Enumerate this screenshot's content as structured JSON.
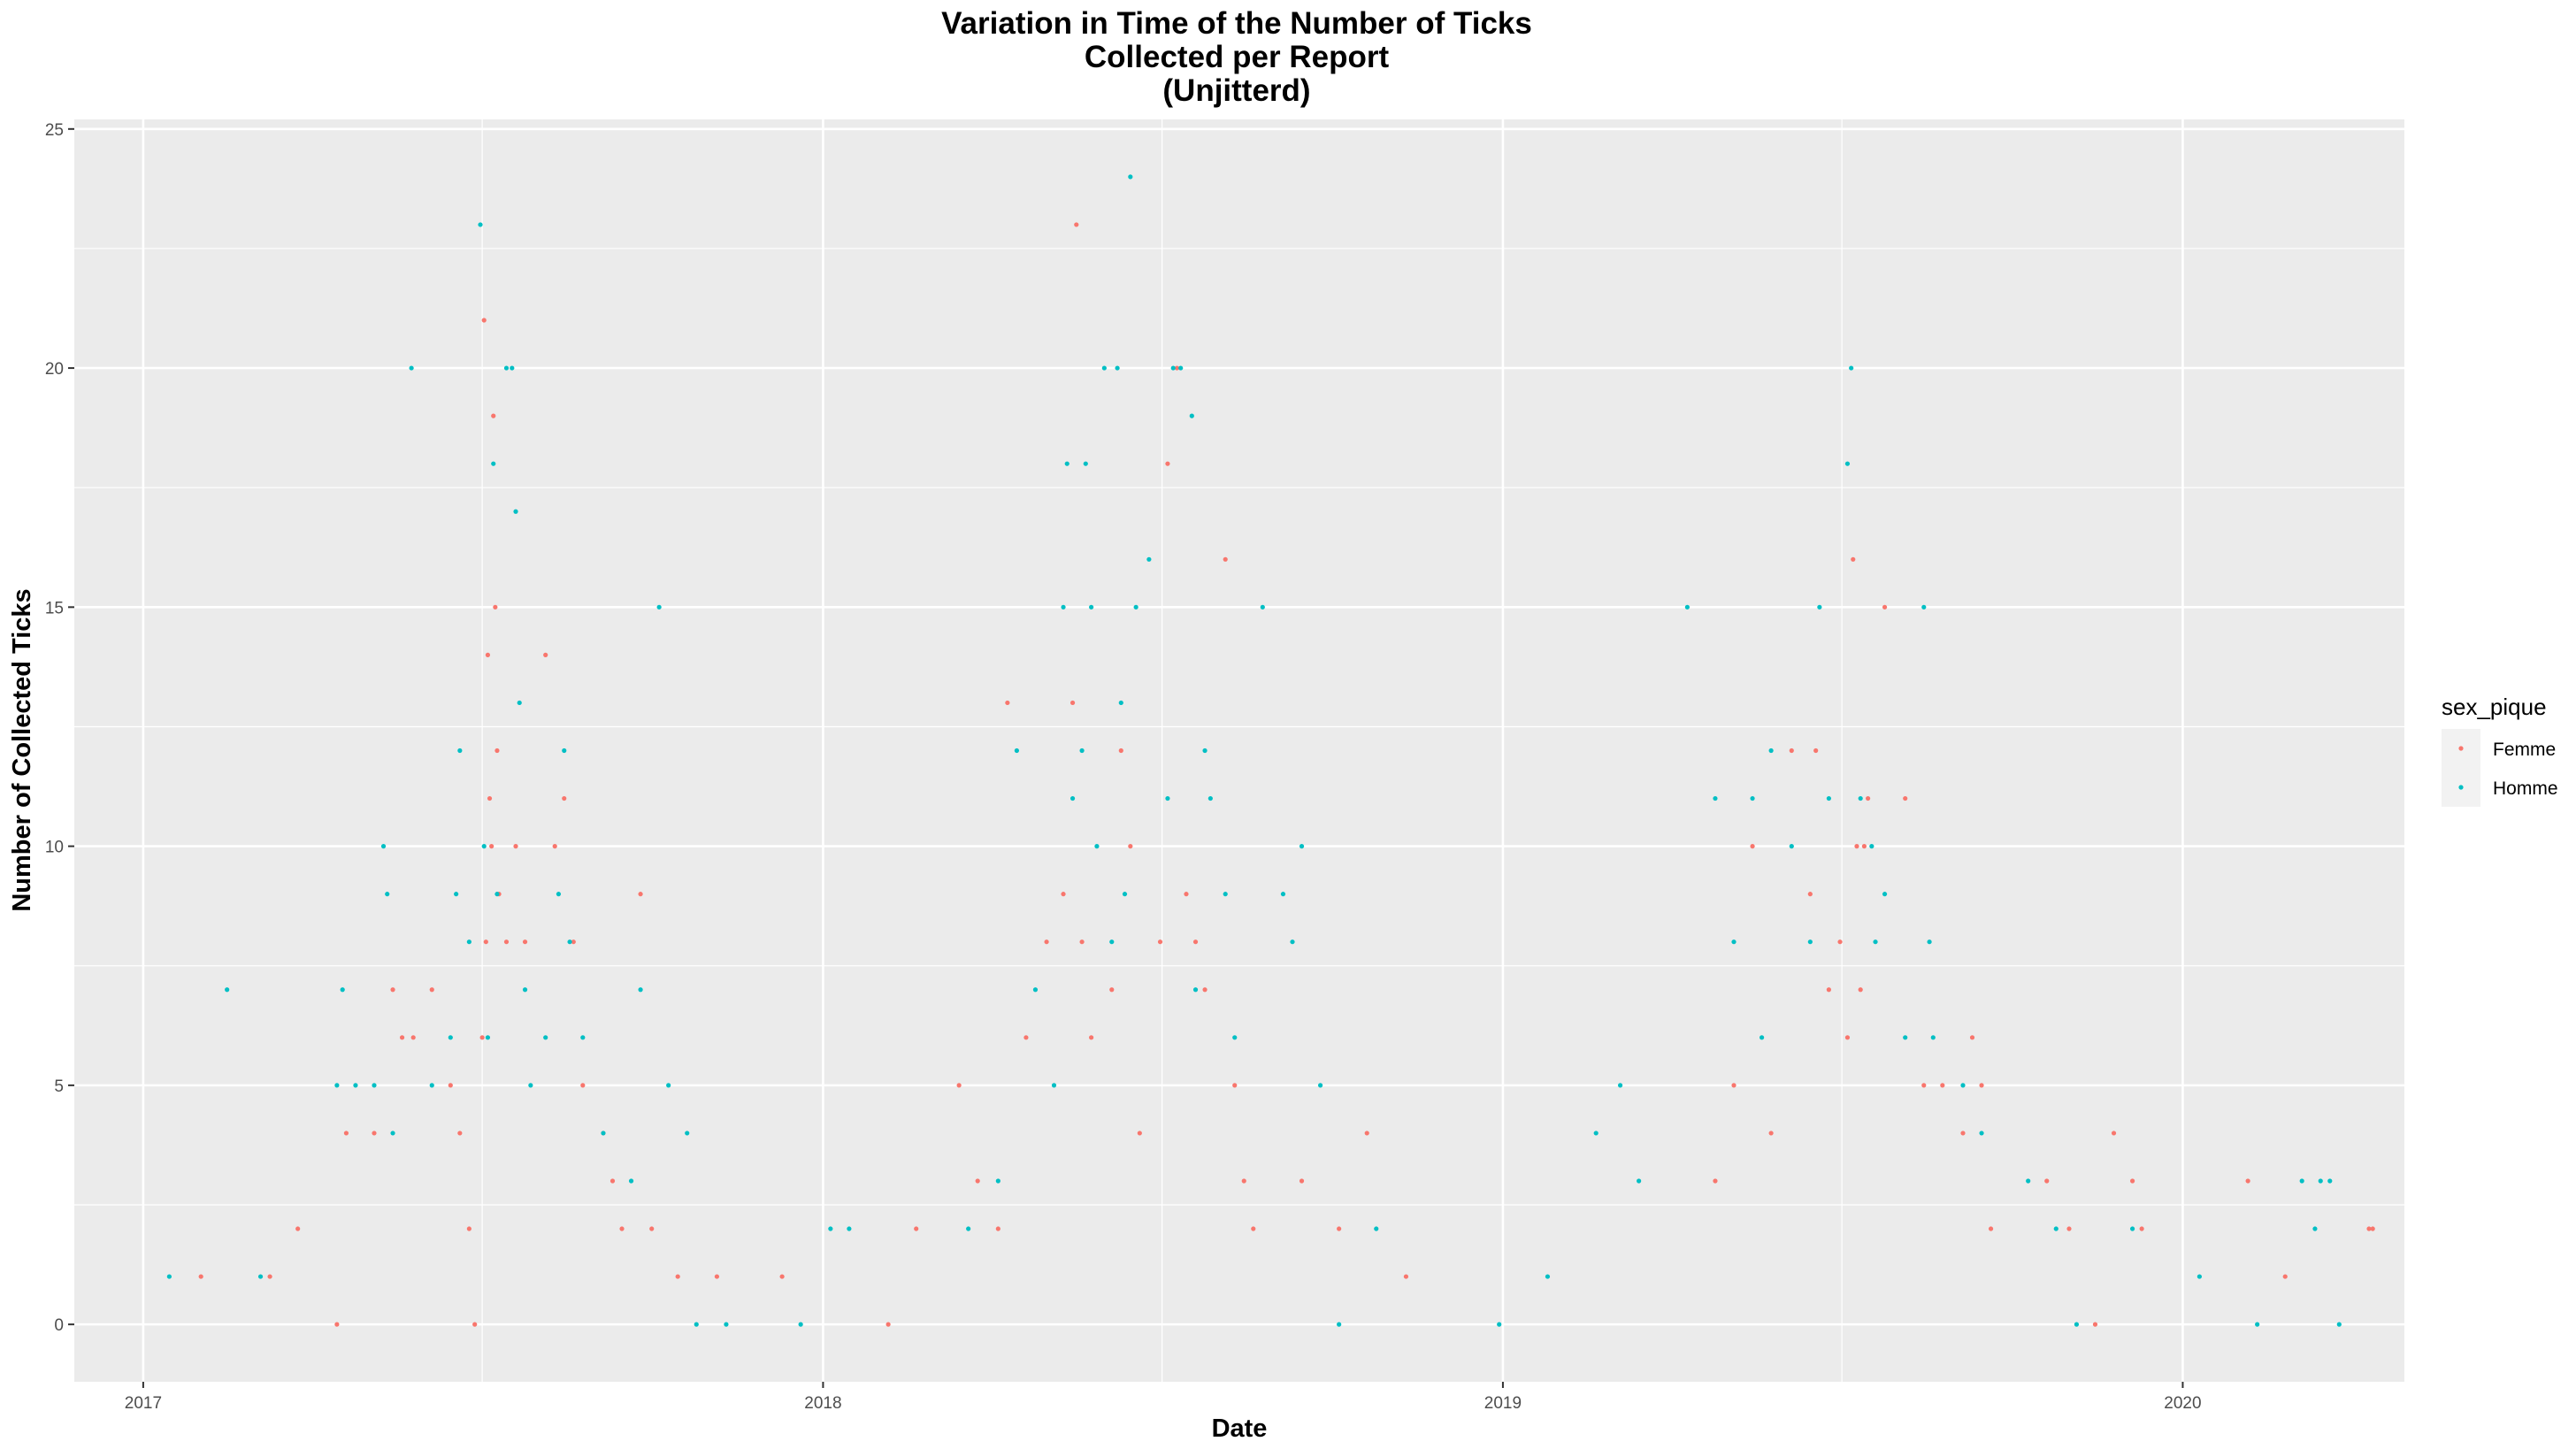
{
  "chart_data": {
    "type": "scatter",
    "title_lines": [
      "Variation in Time of the Number of Ticks",
      "Collected per Report",
      "(Unjitterd)"
    ],
    "xlabel": "Date",
    "ylabel": "Number of Collected Ticks",
    "x_ticks": [
      "2017",
      "2018",
      "2019",
      "2020"
    ],
    "y_ticks": [
      "0",
      "5",
      "10",
      "15",
      "20",
      "25"
    ],
    "xlim": [
      "2016-11-25",
      "2020-04-29"
    ],
    "ylim": [
      -1.2,
      25.2
    ],
    "grid": true,
    "legend_title": "sex_pique",
    "legend_position": "right",
    "colors": {
      "Femme": "#F8766D",
      "Homme": "#00BFC4",
      "panel": "#EBEBEB",
      "grid": "#FFFFFF"
    },
    "series": [
      {
        "name": "Femme",
        "points": [
          [
            "2017-02-01",
            1
          ],
          [
            "2017-03-10",
            1
          ],
          [
            "2017-03-25",
            2
          ],
          [
            "2017-04-15",
            0
          ],
          [
            "2017-04-20",
            4
          ],
          [
            "2017-05-05",
            4
          ],
          [
            "2017-05-15",
            7
          ],
          [
            "2017-05-20",
            6
          ],
          [
            "2017-05-26",
            6
          ],
          [
            "2017-06-05",
            7
          ],
          [
            "2017-06-15",
            5
          ],
          [
            "2017-06-20",
            4
          ],
          [
            "2017-06-25",
            2
          ],
          [
            "2017-06-28",
            0
          ],
          [
            "2017-07-03",
            21
          ],
          [
            "2017-07-05",
            14
          ],
          [
            "2017-07-08",
            19
          ],
          [
            "2017-07-09",
            15
          ],
          [
            "2017-07-10",
            12
          ],
          [
            "2017-07-06",
            11
          ],
          [
            "2017-07-07",
            10
          ],
          [
            "2017-07-04",
            8
          ],
          [
            "2017-07-02",
            6
          ],
          [
            "2017-07-11",
            9
          ],
          [
            "2017-07-15",
            8
          ],
          [
            "2017-07-20",
            10
          ],
          [
            "2017-07-25",
            8
          ],
          [
            "2017-08-05",
            14
          ],
          [
            "2017-08-15",
            11
          ],
          [
            "2017-08-10",
            10
          ],
          [
            "2017-08-20",
            8
          ],
          [
            "2017-08-25",
            5
          ],
          [
            "2017-09-05",
            4
          ],
          [
            "2017-09-10",
            3
          ],
          [
            "2017-09-15",
            2
          ],
          [
            "2017-09-25",
            9
          ],
          [
            "2017-10-01",
            2
          ],
          [
            "2017-10-15",
            1
          ],
          [
            "2017-11-05",
            1
          ],
          [
            "2017-12-10",
            1
          ],
          [
            "2018-02-05",
            0
          ],
          [
            "2018-02-20",
            2
          ],
          [
            "2018-03-15",
            5
          ],
          [
            "2018-03-25",
            3
          ],
          [
            "2018-04-05",
            2
          ],
          [
            "2018-04-10",
            13
          ],
          [
            "2018-04-20",
            6
          ],
          [
            "2018-05-01",
            8
          ],
          [
            "2018-05-10",
            9
          ],
          [
            "2018-05-15",
            13
          ],
          [
            "2018-05-17",
            23
          ],
          [
            "2018-05-20",
            8
          ],
          [
            "2018-05-25",
            6
          ],
          [
            "2018-06-05",
            7
          ],
          [
            "2018-06-10",
            12
          ],
          [
            "2018-06-15",
            10
          ],
          [
            "2018-06-20",
            4
          ],
          [
            "2018-07-01",
            8
          ],
          [
            "2018-07-05",
            18
          ],
          [
            "2018-07-10",
            20
          ],
          [
            "2018-07-15",
            9
          ],
          [
            "2018-07-20",
            8
          ],
          [
            "2018-07-25",
            7
          ],
          [
            "2018-08-05",
            16
          ],
          [
            "2018-08-10",
            5
          ],
          [
            "2018-08-15",
            3
          ],
          [
            "2018-08-20",
            2
          ],
          [
            "2018-09-15",
            3
          ],
          [
            "2018-10-20",
            4
          ],
          [
            "2018-10-05",
            2
          ],
          [
            "2018-11-10",
            1
          ],
          [
            "2019-04-25",
            3
          ],
          [
            "2019-05-05",
            5
          ],
          [
            "2019-05-15",
            10
          ],
          [
            "2019-05-25",
            4
          ],
          [
            "2019-06-05",
            12
          ],
          [
            "2019-06-15",
            9
          ],
          [
            "2019-06-18",
            12
          ],
          [
            "2019-06-25",
            7
          ],
          [
            "2019-07-01",
            8
          ],
          [
            "2019-07-05",
            6
          ],
          [
            "2019-07-08",
            16
          ],
          [
            "2019-07-10",
            10
          ],
          [
            "2019-07-12",
            7
          ],
          [
            "2019-07-14",
            10
          ],
          [
            "2019-07-16",
            11
          ],
          [
            "2019-07-25",
            15
          ],
          [
            "2019-08-05",
            11
          ],
          [
            "2019-08-15",
            5
          ],
          [
            "2019-08-25",
            5
          ],
          [
            "2019-09-05",
            4
          ],
          [
            "2019-09-10",
            6
          ],
          [
            "2019-09-15",
            5
          ],
          [
            "2019-09-20",
            2
          ],
          [
            "2019-10-20",
            3
          ],
          [
            "2019-11-01",
            2
          ],
          [
            "2019-11-15",
            0
          ],
          [
            "2019-11-25",
            4
          ],
          [
            "2019-12-05",
            3
          ],
          [
            "2019-12-10",
            2
          ],
          [
            "2020-02-05",
            3
          ],
          [
            "2020-02-25",
            1
          ],
          [
            "2020-04-10",
            2
          ],
          [
            "2020-04-12",
            2
          ]
        ]
      },
      {
        "name": "Homme",
        "points": [
          [
            "2017-01-15",
            1
          ],
          [
            "2017-02-15",
            7
          ],
          [
            "2017-03-05",
            1
          ],
          [
            "2017-04-15",
            5
          ],
          [
            "2017-04-18",
            7
          ],
          [
            "2017-04-25",
            5
          ],
          [
            "2017-05-05",
            5
          ],
          [
            "2017-05-10",
            10
          ],
          [
            "2017-05-12",
            9
          ],
          [
            "2017-05-15",
            4
          ],
          [
            "2017-05-25",
            20
          ],
          [
            "2017-06-05",
            5
          ],
          [
            "2017-06-15",
            6
          ],
          [
            "2017-06-18",
            9
          ],
          [
            "2017-06-20",
            12
          ],
          [
            "2017-06-25",
            8
          ],
          [
            "2017-07-01",
            23
          ],
          [
            "2017-07-03",
            10
          ],
          [
            "2017-07-05",
            6
          ],
          [
            "2017-07-08",
            18
          ],
          [
            "2017-07-10",
            9
          ],
          [
            "2017-07-15",
            20
          ],
          [
            "2017-07-18",
            20
          ],
          [
            "2017-07-20",
            17
          ],
          [
            "2017-07-22",
            13
          ],
          [
            "2017-07-25",
            7
          ],
          [
            "2017-07-28",
            5
          ],
          [
            "2017-08-05",
            6
          ],
          [
            "2017-08-15",
            12
          ],
          [
            "2017-08-12",
            9
          ],
          [
            "2017-08-18",
            8
          ],
          [
            "2017-08-25",
            6
          ],
          [
            "2017-09-05",
            4
          ],
          [
            "2017-09-20",
            3
          ],
          [
            "2017-09-25",
            7
          ],
          [
            "2017-10-05",
            15
          ],
          [
            "2017-10-10",
            5
          ],
          [
            "2017-10-20",
            4
          ],
          [
            "2017-10-25",
            0
          ],
          [
            "2017-11-10",
            0
          ],
          [
            "2017-12-20",
            0
          ],
          [
            "2018-01-05",
            2
          ],
          [
            "2018-01-15",
            2
          ],
          [
            "2018-03-20",
            2
          ],
          [
            "2018-04-05",
            3
          ],
          [
            "2018-04-15",
            12
          ],
          [
            "2018-04-25",
            7
          ],
          [
            "2018-05-05",
            5
          ],
          [
            "2018-05-10",
            15
          ],
          [
            "2018-05-12",
            18
          ],
          [
            "2018-05-15",
            11
          ],
          [
            "2018-05-20",
            12
          ],
          [
            "2018-05-22",
            18
          ],
          [
            "2018-05-25",
            15
          ],
          [
            "2018-05-28",
            10
          ],
          [
            "2018-06-01",
            20
          ],
          [
            "2018-06-05",
            8
          ],
          [
            "2018-06-08",
            20
          ],
          [
            "2018-06-10",
            13
          ],
          [
            "2018-06-12",
            9
          ],
          [
            "2018-06-15",
            24
          ],
          [
            "2018-06-18",
            15
          ],
          [
            "2018-06-25",
            16
          ],
          [
            "2018-07-05",
            11
          ],
          [
            "2018-07-08",
            20
          ],
          [
            "2018-07-12",
            20
          ],
          [
            "2018-07-18",
            19
          ],
          [
            "2018-07-20",
            7
          ],
          [
            "2018-07-25",
            12
          ],
          [
            "2018-07-28",
            11
          ],
          [
            "2018-08-05",
            9
          ],
          [
            "2018-08-10",
            6
          ],
          [
            "2018-08-25",
            15
          ],
          [
            "2018-09-05",
            9
          ],
          [
            "2018-09-10",
            8
          ],
          [
            "2018-09-15",
            10
          ],
          [
            "2018-09-25",
            5
          ],
          [
            "2018-10-05",
            0
          ],
          [
            "2018-10-25",
            2
          ],
          [
            "2018-12-30",
            0
          ],
          [
            "2019-01-25",
            1
          ],
          [
            "2019-02-20",
            4
          ],
          [
            "2019-03-05",
            5
          ],
          [
            "2019-03-15",
            3
          ],
          [
            "2019-04-10",
            15
          ],
          [
            "2019-04-25",
            11
          ],
          [
            "2019-05-05",
            8
          ],
          [
            "2019-05-15",
            11
          ],
          [
            "2019-05-20",
            6
          ],
          [
            "2019-05-25",
            12
          ],
          [
            "2019-06-05",
            10
          ],
          [
            "2019-06-15",
            8
          ],
          [
            "2019-06-20",
            15
          ],
          [
            "2019-06-25",
            11
          ],
          [
            "2019-07-05",
            18
          ],
          [
            "2019-07-07",
            20
          ],
          [
            "2019-07-12",
            11
          ],
          [
            "2019-07-18",
            10
          ],
          [
            "2019-07-20",
            8
          ],
          [
            "2019-07-25",
            9
          ],
          [
            "2019-08-05",
            6
          ],
          [
            "2019-08-15",
            15
          ],
          [
            "2019-08-18",
            8
          ],
          [
            "2019-08-20",
            6
          ],
          [
            "2019-09-05",
            5
          ],
          [
            "2019-09-15",
            4
          ],
          [
            "2019-10-10",
            3
          ],
          [
            "2019-10-25",
            2
          ],
          [
            "2019-11-05",
            0
          ],
          [
            "2019-12-05",
            2
          ],
          [
            "2020-01-10",
            1
          ],
          [
            "2020-02-10",
            0
          ],
          [
            "2020-03-05",
            3
          ],
          [
            "2020-03-12",
            2
          ],
          [
            "2020-03-15",
            3
          ],
          [
            "2020-03-20",
            3
          ],
          [
            "2020-03-25",
            0
          ]
        ]
      }
    ]
  }
}
